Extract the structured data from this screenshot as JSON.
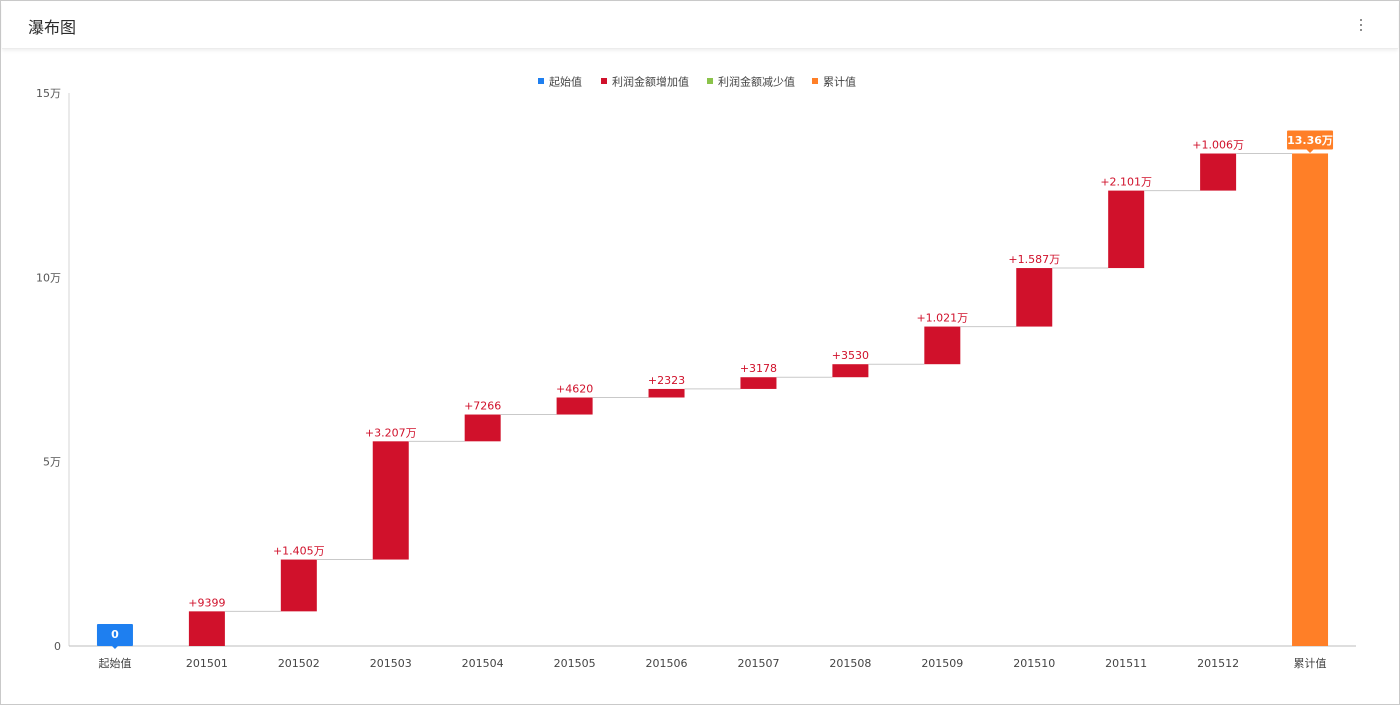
{
  "header": {
    "title": "瀑布图",
    "menu_icon": "more-vertical-icon"
  },
  "chart_data": {
    "type": "bar",
    "subtype": "waterfall",
    "categories": [
      "起始值",
      "201501",
      "201502",
      "201503",
      "201504",
      "201505",
      "201506",
      "201507",
      "201508",
      "201509",
      "201510",
      "201511",
      "201512",
      "累计值"
    ],
    "legend": [
      {
        "name": "起始值",
        "color": "#1e7ff0"
      },
      {
        "name": "利润金额增加值",
        "color": "#d0112b"
      },
      {
        "name": "利润金额减少值",
        "color": "#8bc34a"
      },
      {
        "name": "累计值",
        "color": "#ff7f27"
      }
    ],
    "legend_position": "top-center",
    "start_value": 0,
    "increments": [
      9399,
      14050,
      32070,
      7266,
      4620,
      2323,
      3178,
      3530,
      10210,
      15870,
      21010,
      10060
    ],
    "total": 133600,
    "data_labels": [
      "0",
      "+9399",
      "+1.405万",
      "+3.207万",
      "+7266",
      "+4620",
      "+2323",
      "+3178",
      "+3530",
      "+1.021万",
      "+1.587万",
      "+2.101万",
      "+1.006万",
      "13.36万"
    ],
    "y_ticks": [
      "0",
      "5万",
      "10万",
      "15万"
    ],
    "ylim": [
      0,
      150000
    ],
    "grid": false
  }
}
